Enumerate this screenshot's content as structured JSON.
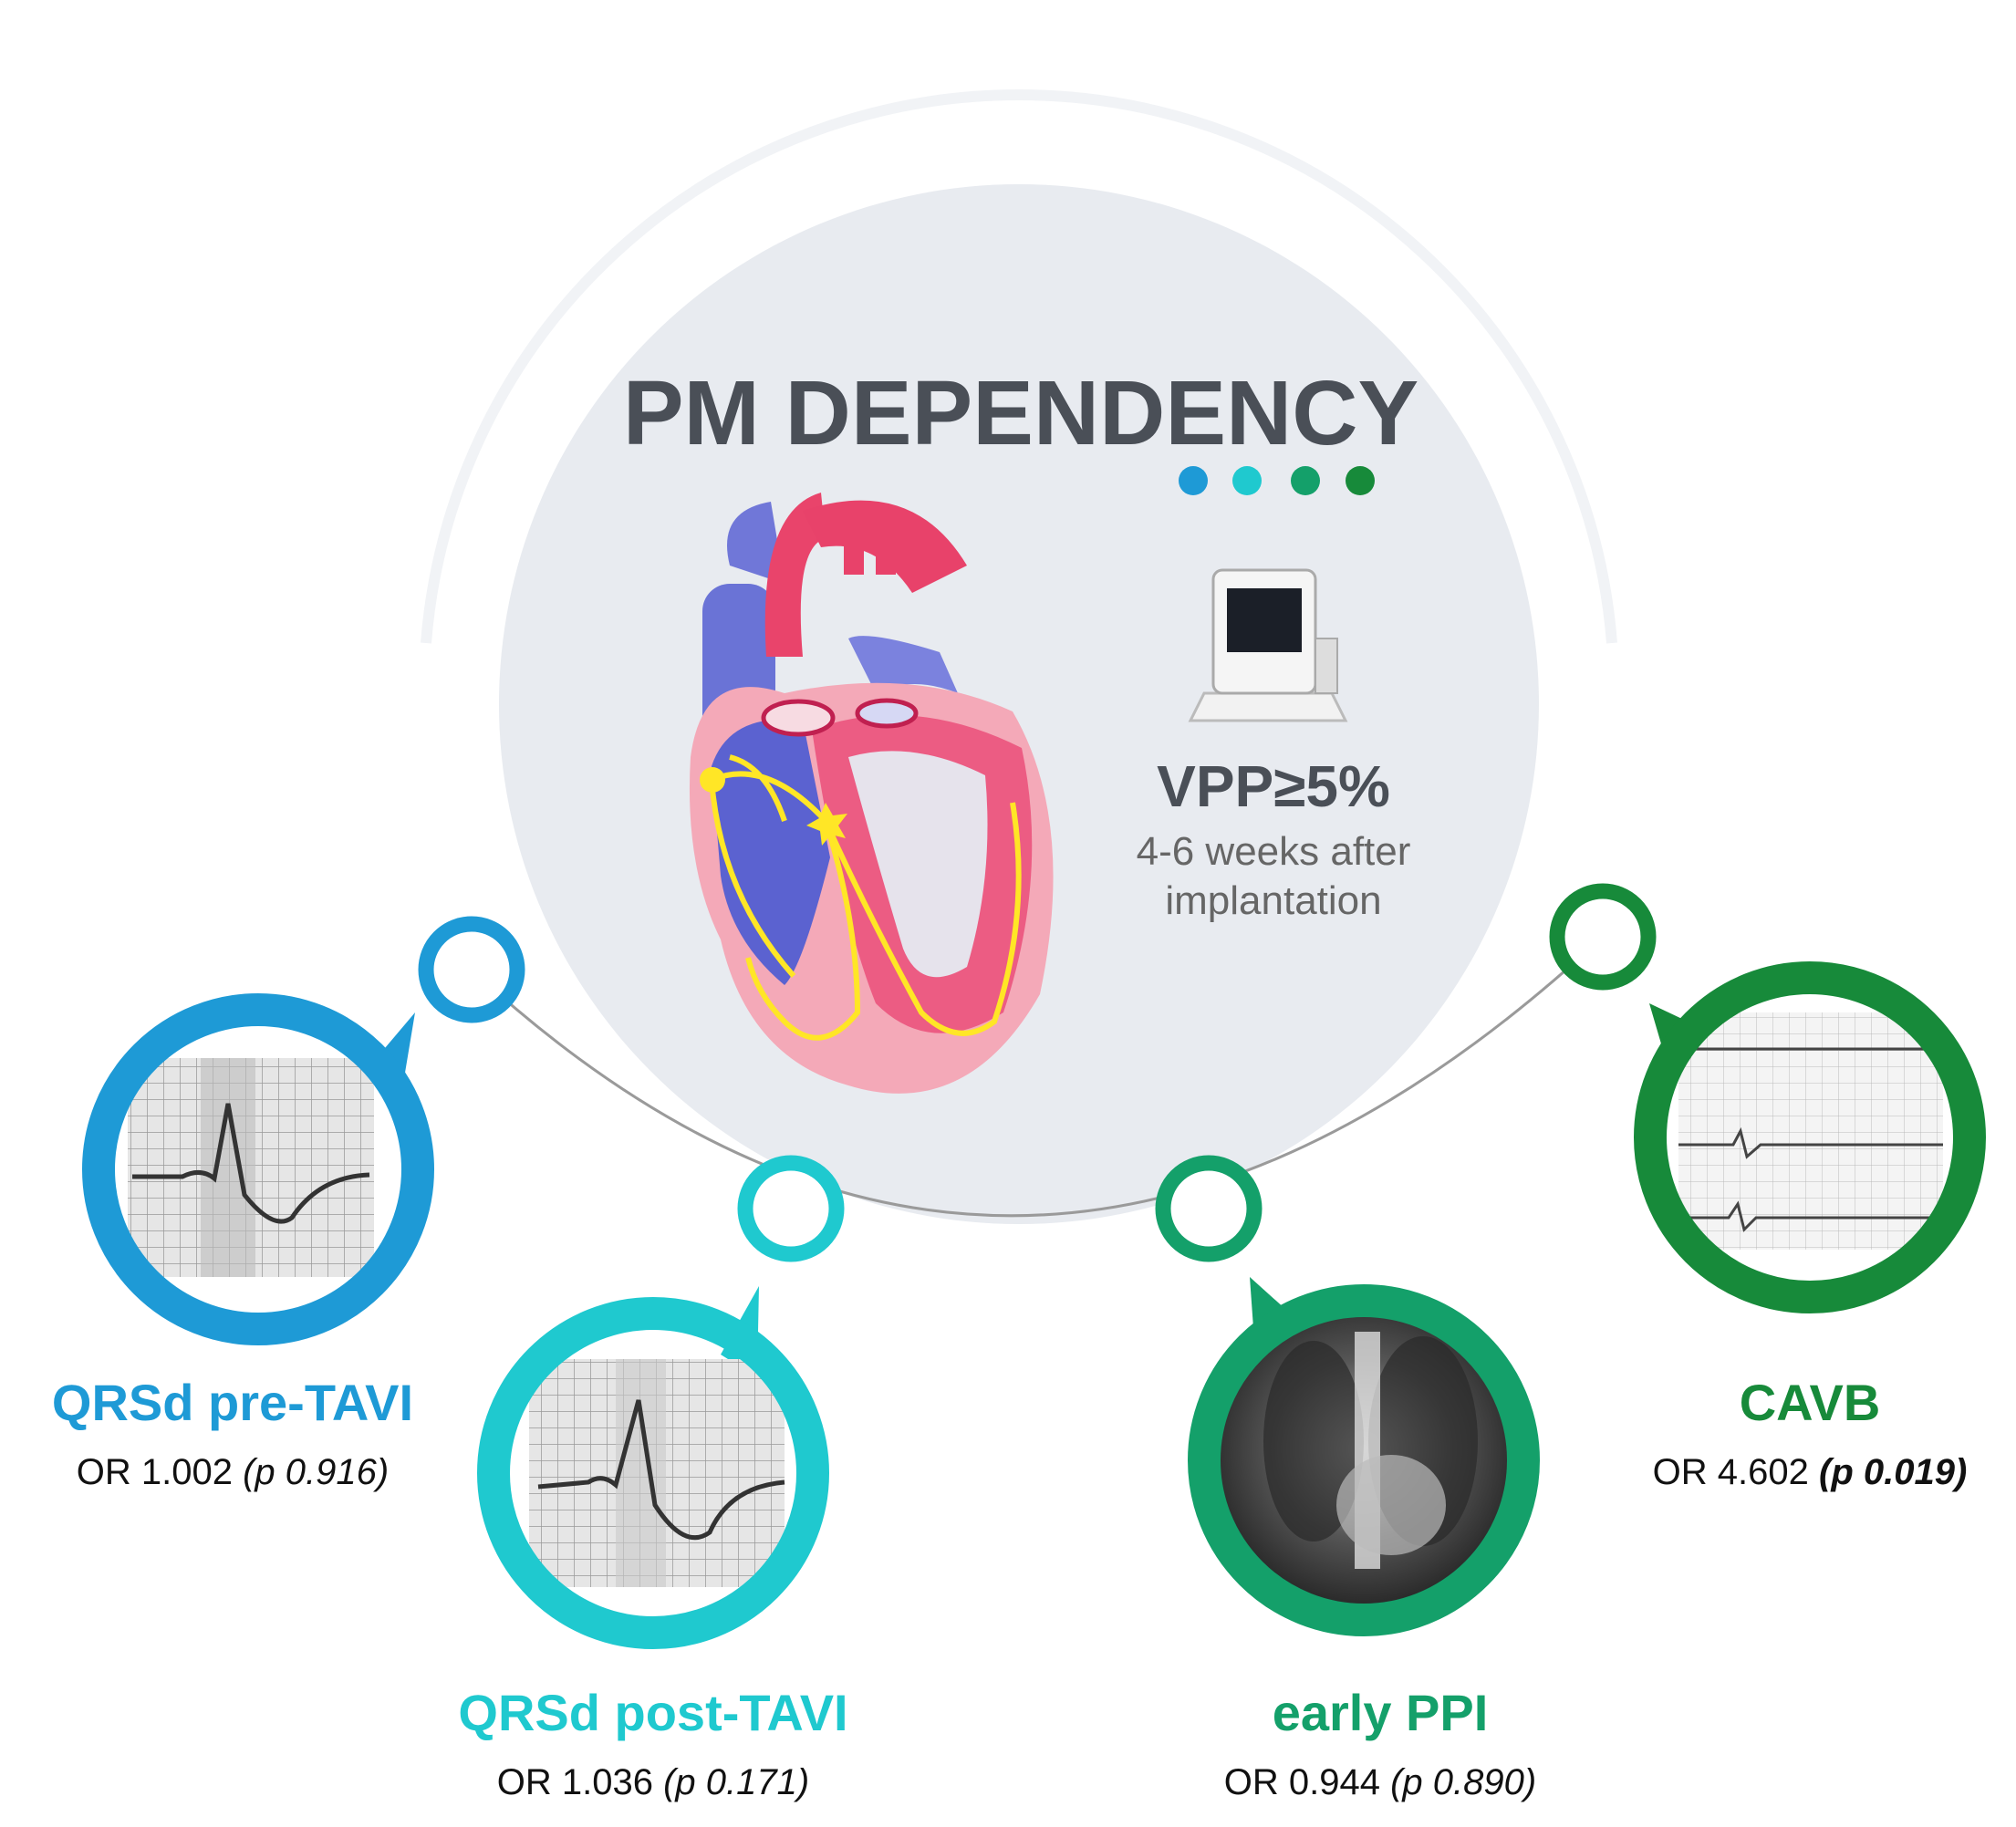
{
  "title": "PM DEPENDENCY",
  "criterion": {
    "label": "VPP≥5%",
    "detail_line1": "4-6 weeks after",
    "detail_line2": "implantation"
  },
  "factors": [
    {
      "name": "QRSd pre-TAVI",
      "or_text": "OR 1.002",
      "p_text": "(p 0.916)"
    },
    {
      "name": "QRSd post-TAVI",
      "or_text": "OR 1.036",
      "p_text": "(p 0.171)"
    },
    {
      "name": "early PPI",
      "or_text": "OR 0.944",
      "p_text": "(p 0.890)"
    },
    {
      "name": "CAVB",
      "or_text": "OR 4.602",
      "p_text": "(p 0.019)"
    }
  ]
}
